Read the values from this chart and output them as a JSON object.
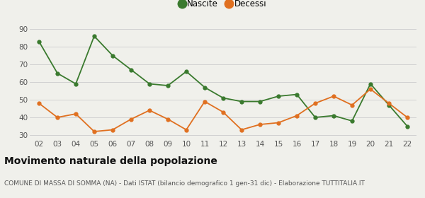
{
  "years": [
    "02",
    "03",
    "04",
    "05",
    "06",
    "07",
    "08",
    "09",
    "10",
    "11",
    "12",
    "13",
    "14",
    "15",
    "16",
    "17",
    "18",
    "19",
    "20",
    "21",
    "22"
  ],
  "nascite": [
    83,
    65,
    59,
    86,
    75,
    67,
    59,
    58,
    66,
    57,
    51,
    49,
    49,
    52,
    53,
    40,
    41,
    38,
    59,
    47,
    35
  ],
  "decessi": [
    48,
    40,
    42,
    32,
    33,
    39,
    44,
    39,
    33,
    49,
    43,
    33,
    36,
    37,
    41,
    48,
    52,
    47,
    56,
    48,
    40
  ],
  "nascite_color": "#3a7a2e",
  "decessi_color": "#e07020",
  "bg_color": "#f0f0eb",
  "grid_color": "#cccccc",
  "title": "Movimento naturale della popolazione",
  "subtitle": "COMUNE DI MASSA DI SOMMA (NA) - Dati ISTAT (bilancio demografico 1 gen-31 dic) - Elaborazione TUTTITALIA.IT",
  "legend_nascite": "Nascite",
  "legend_decessi": "Decessi",
  "ylim_min": 28,
  "ylim_max": 93,
  "yticks": [
    30,
    40,
    50,
    60,
    70,
    80,
    90
  ],
  "title_fontsize": 10,
  "subtitle_fontsize": 6.5,
  "legend_fontsize": 8.5,
  "tick_fontsize": 7.5
}
